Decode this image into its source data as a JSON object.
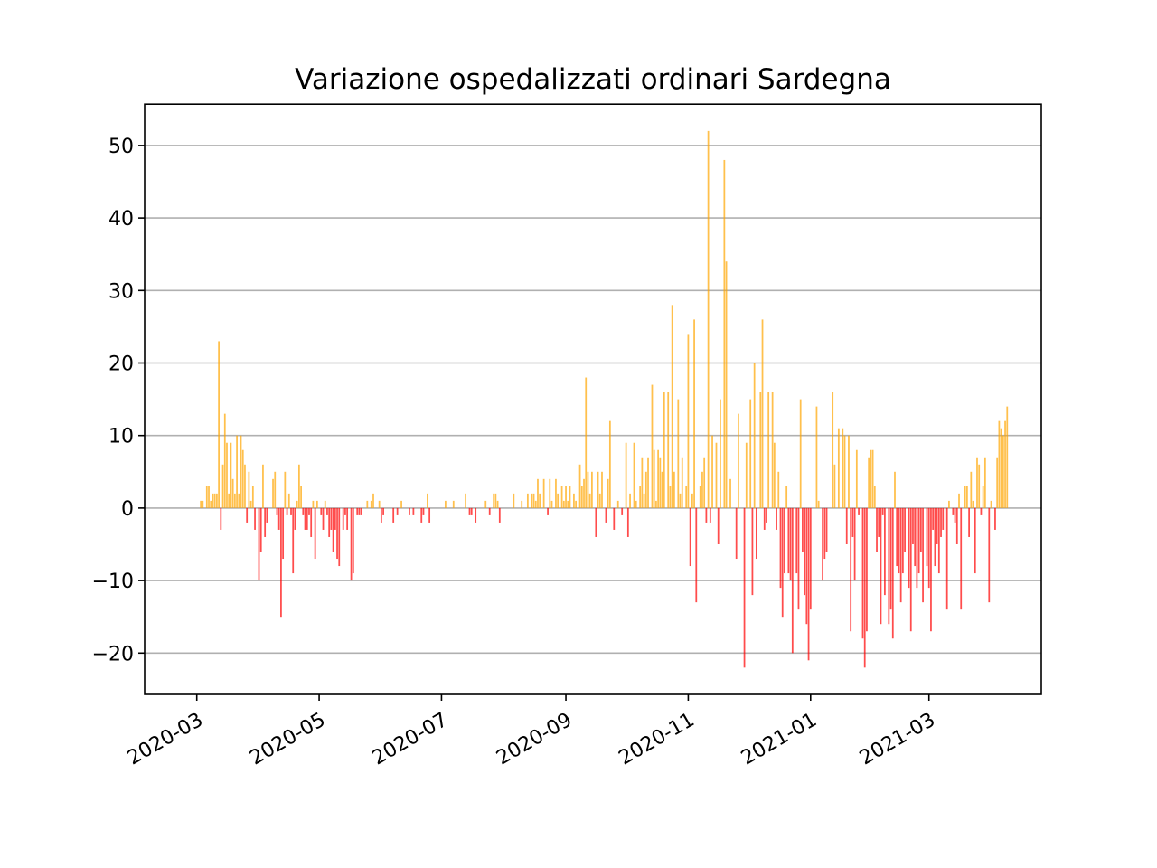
{
  "chart_data": {
    "type": "bar",
    "title": "Variazione ospedalizzati ordinari Sardegna",
    "xlabel": "",
    "ylabel": "",
    "x_start": "2020-03-03",
    "x_end": "2021-03-31",
    "xlim": [
      "2020-02-04",
      "2021-04-26"
    ],
    "ylim": [
      -25.7,
      55.7
    ],
    "y_ticks": [
      -20,
      -10,
      0,
      10,
      20,
      30,
      40,
      50
    ],
    "y_tick_labels": [
      "−20",
      "−10",
      "0",
      "10",
      "20",
      "30",
      "40",
      "50"
    ],
    "x_ticks": [
      "2020-03-01",
      "2020-05-01",
      "2020-07-01",
      "2020-09-01",
      "2020-11-01",
      "2021-01-01",
      "2021-03-01"
    ],
    "x_tick_labels": [
      "2020-03",
      "2020-05",
      "2020-07",
      "2020-09",
      "2020-11",
      "2021-01",
      "2021-03"
    ],
    "grid": "y",
    "colors": {
      "positive": "#ffa500",
      "negative": "#ff0000",
      "grid": "#b0b0b0"
    },
    "values": [
      1,
      1,
      0,
      3,
      3,
      1,
      2,
      2,
      2,
      23,
      -3,
      6,
      13,
      9,
      2,
      9,
      4,
      2,
      10,
      2,
      10,
      8,
      6,
      -2,
      5,
      1,
      3,
      -3,
      0,
      -10,
      -6,
      6,
      -4,
      -2,
      0,
      0,
      4,
      5,
      -1,
      -3,
      -15,
      -7,
      5,
      -1,
      2,
      -1,
      -9,
      -3,
      1,
      6,
      3,
      -1,
      -3,
      -3,
      -1,
      -4,
      1,
      -7,
      1,
      0,
      -1,
      -3,
      1,
      -1,
      -4,
      -3,
      -6,
      -3,
      -7,
      -8,
      0,
      -3,
      -1,
      -3,
      0,
      -10,
      -9,
      0,
      -1,
      -1,
      -1,
      0,
      0,
      1,
      0,
      1,
      2,
      0,
      0,
      1,
      -2,
      -1,
      0,
      0,
      0,
      0,
      -2,
      0,
      -1,
      0,
      1,
      0,
      0,
      0,
      -1,
      0,
      -1,
      0,
      0,
      0,
      -2,
      -1,
      0,
      2,
      -2,
      0,
      0,
      0,
      0,
      0,
      0,
      0,
      1,
      0,
      0,
      0,
      1,
      0,
      0,
      0,
      0,
      0,
      2,
      0,
      -1,
      -1,
      0,
      -2,
      0,
      0,
      0,
      0,
      1,
      0,
      -1,
      0,
      2,
      2,
      1,
      -2,
      0,
      0,
      0,
      0,
      0,
      0,
      2,
      0,
      0,
      0,
      1,
      0,
      0,
      2,
      0,
      2,
      2,
      1,
      4,
      2,
      0,
      4,
      0,
      -1,
      4,
      1,
      0,
      4,
      2,
      0,
      3,
      1,
      3,
      1,
      3,
      0,
      2,
      1,
      0,
      6,
      3,
      4,
      18,
      5,
      2,
      5,
      0,
      -4,
      5,
      2,
      5,
      0,
      -2,
      4,
      12,
      0,
      -3,
      0,
      1,
      0,
      -1,
      0,
      9,
      -4,
      2,
      0,
      9,
      1,
      0,
      3,
      7,
      2,
      5,
      7,
      0,
      17,
      8,
      1,
      8,
      7,
      5,
      16,
      0,
      16,
      3,
      28,
      5,
      0,
      15,
      2,
      7,
      0,
      3,
      24,
      -8,
      2,
      26,
      -13,
      0,
      3,
      5,
      7,
      -2,
      52,
      -2,
      10,
      0,
      9,
      -5,
      15,
      0,
      48,
      34,
      0,
      4,
      0,
      0,
      -7,
      13,
      0,
      0,
      -22,
      9,
      0,
      15,
      -12,
      20,
      -7,
      0,
      16,
      26,
      -3,
      -2,
      16,
      0,
      16,
      9,
      -3,
      5,
      -11,
      -15,
      -9,
      3,
      -9,
      -10,
      -20,
      0,
      -9,
      -14,
      15,
      -6,
      -12,
      -16,
      -21,
      -14,
      0,
      0,
      14,
      1,
      0,
      -10,
      -7,
      -6,
      0,
      0,
      16,
      6,
      0,
      11,
      0,
      11,
      10,
      -5,
      10,
      -17,
      -4,
      -10,
      8,
      -1,
      0,
      -18,
      -22,
      -17,
      7,
      8,
      8,
      3,
      -6,
      -4,
      -16,
      -1,
      -12,
      0,
      -16,
      -14,
      -18,
      5,
      -8,
      -9,
      -13,
      -9,
      -6,
      0,
      -11,
      -17,
      -5,
      -8,
      -11,
      -9,
      -6,
      -13,
      0,
      -8,
      -11,
      -17,
      -3,
      -8,
      -5,
      -9,
      -4,
      -3,
      0,
      -14,
      1,
      0,
      -1,
      -2,
      -5,
      2,
      -14,
      0,
      3,
      3,
      -4,
      5,
      1,
      -9,
      7,
      6,
      -1,
      3,
      7,
      0,
      -13,
      1,
      0,
      -3,
      7,
      12,
      11,
      10,
      12,
      14
    ]
  }
}
